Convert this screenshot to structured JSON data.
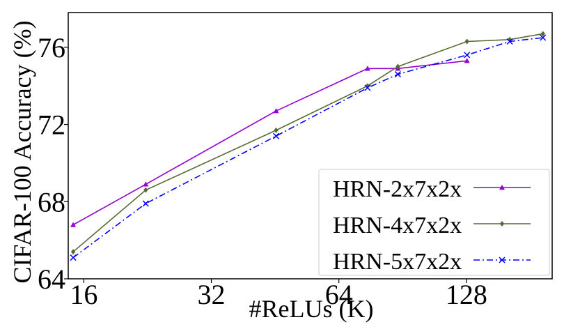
{
  "chart_data": {
    "type": "line",
    "title": "",
    "xlabel": "#ReLUs (K)",
    "ylabel": "CIFAR-100 Accuracy (%)",
    "x_scale": "log2",
    "x_ticks": [
      16,
      32,
      64,
      128
    ],
    "x_tick_labels": [
      "16",
      "32",
      "64",
      "128"
    ],
    "xlim": [
      14.7,
      204
    ],
    "y_ticks": [
      64,
      68,
      72,
      76
    ],
    "y_tick_labels": [
      "64",
      "68",
      "72",
      "76"
    ],
    "ylim": [
      64,
      77.8
    ],
    "grid": false,
    "legend_position": "lower-right",
    "series": [
      {
        "name": "HRN-2x7x2x",
        "color": "#9400d3",
        "marker": "triangle",
        "dash": "solid",
        "x": [
          15.1,
          22.4,
          45.5,
          74.8,
          88.2,
          128.4
        ],
        "y": [
          66.8,
          68.9,
          72.7,
          74.9,
          74.9,
          75.3
        ]
      },
      {
        "name": "HRN-4x7x2x",
        "color": "#556b2f",
        "marker": "diamond",
        "dash": "solid",
        "x": [
          15.1,
          22.4,
          45.5,
          74.8,
          88.2,
          128.4,
          162,
          194
        ],
        "y": [
          65.4,
          68.6,
          71.7,
          74.0,
          75.0,
          76.3,
          76.4,
          76.7
        ]
      },
      {
        "name": "HRN-5x7x2x",
        "color": "#0000ff",
        "marker": "x",
        "dash": "dashdot",
        "x": [
          15.1,
          22.4,
          45.5,
          74.8,
          88.2,
          128.4,
          162,
          194
        ],
        "y": [
          65.1,
          67.9,
          71.4,
          73.9,
          74.6,
          75.6,
          76.3,
          76.5
        ]
      }
    ]
  }
}
